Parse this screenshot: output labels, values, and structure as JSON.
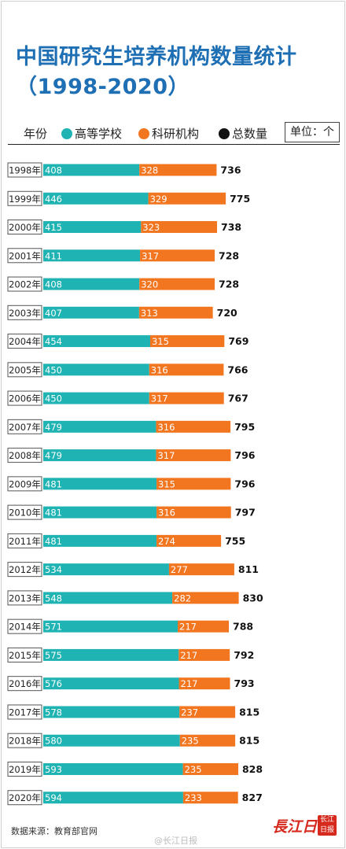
{
  "title_line1": "中国研究生培养机构数量统计",
  "title_line2": "（1998-2020）",
  "legend": {
    "year_header": "年份",
    "unit": "单位：个"
  },
  "colors": {
    "universities": "#1fb3b3",
    "research": "#f2751f",
    "text": "#222222"
  },
  "chart_data": {
    "type": "bar",
    "orientation": "horizontal",
    "stacked": true,
    "categories": [
      "1998年",
      "1999年",
      "2000年",
      "2001年",
      "2002年",
      "2003年",
      "2004年",
      "2005年",
      "2006年",
      "2007年",
      "2008年",
      "2009年",
      "2010年",
      "2011年",
      "2012年",
      "2013年",
      "2014年",
      "2015年",
      "2016年",
      "2017年",
      "2018年",
      "2019年",
      "2020年"
    ],
    "series": [
      {
        "name": "高等学校",
        "values": [
          408,
          446,
          415,
          411,
          408,
          407,
          454,
          450,
          450,
          479,
          479,
          481,
          481,
          481,
          534,
          548,
          571,
          575,
          576,
          578,
          580,
          593,
          594
        ]
      },
      {
        "name": "科研机构",
        "values": [
          328,
          329,
          323,
          317,
          320,
          313,
          315,
          316,
          317,
          316,
          317,
          315,
          316,
          274,
          277,
          282,
          217,
          217,
          217,
          237,
          235,
          235,
          233
        ]
      }
    ],
    "totals_label": "总数量",
    "totals": [
      736,
      775,
      738,
      728,
      728,
      720,
      769,
      766,
      767,
      795,
      796,
      796,
      797,
      755,
      811,
      830,
      788,
      792,
      793,
      815,
      815,
      828,
      827
    ],
    "grid": false,
    "legend_position": "top"
  },
  "source": "数据来源：教育部官网",
  "watermark": "@长江日报",
  "logo": "長江日報",
  "seal": "长江日报"
}
